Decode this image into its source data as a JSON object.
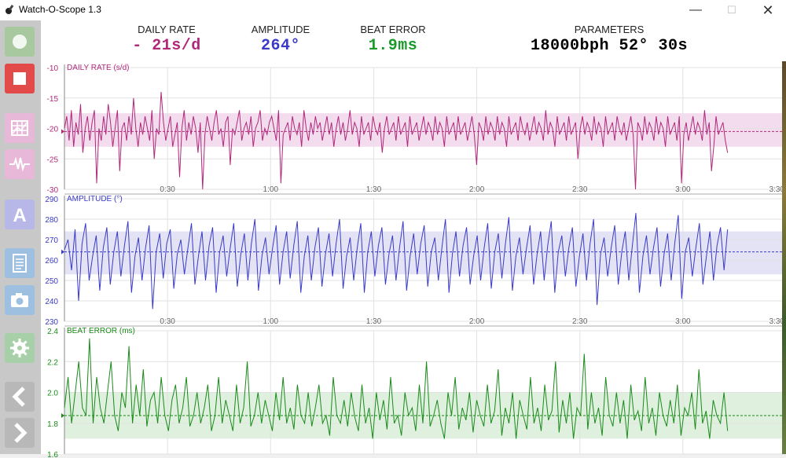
{
  "window": {
    "title": "Watch-O-Scope 1.3",
    "minimize": "—",
    "maximize": "☐",
    "close": "✕"
  },
  "toolbar": [
    {
      "name": "record-button",
      "icon": "record-icon",
      "color": "#a8c8a0"
    },
    {
      "name": "stop-button",
      "icon": "stop-icon",
      "color": "#e34a4a"
    },
    {
      "name": "graph-view-button",
      "icon": "grid-chart-icon",
      "color": "#e8b8d8"
    },
    {
      "name": "waveform-button",
      "icon": "waveform-icon",
      "color": "#e8b8d8"
    },
    {
      "name": "amplitude-button",
      "icon": "letter-a-icon",
      "color": "#b8b8e8"
    },
    {
      "name": "report-button",
      "icon": "document-icon",
      "color": "#9ec0e0"
    },
    {
      "name": "screenshot-button",
      "icon": "camera-icon",
      "color": "#9ec0e0"
    },
    {
      "name": "settings-button",
      "icon": "gear-icon",
      "color": "#a8d0a8"
    },
    {
      "name": "previous-button",
      "icon": "chevron-left-icon",
      "color": "#b8b8b8"
    },
    {
      "name": "next-button",
      "icon": "chevron-right-icon",
      "color": "#b8b8b8"
    }
  ],
  "metrics": {
    "daily_rate": {
      "label": "DAILY RATE",
      "value": "- 21s/d",
      "color": "#b0287a"
    },
    "amplitude": {
      "label": "AMPLITUDE",
      "value": "264°",
      "color": "#3a3ac8"
    },
    "beat_error": {
      "label": "BEAT ERROR",
      "value": "1.9ms",
      "color": "#1a9a2a"
    },
    "parameters": {
      "label": "PARAMETERS",
      "value": "18000bph 52° 30s",
      "color": "#000000"
    }
  },
  "chart_data": [
    {
      "type": "line",
      "title": "DAILY RATE (s/d)",
      "color": "#b0287a",
      "band_color": "#f3dcee",
      "ylim": [
        -30,
        -10
      ],
      "y_ticks": [
        "-10",
        "-15",
        "-20",
        "-25",
        "-30"
      ],
      "x_ticks": [
        "0:30",
        "1:00",
        "1:30",
        "2:00",
        "2:30",
        "3:00",
        "3:30"
      ],
      "xlim_seconds": [
        0,
        210
      ],
      "band": [
        -23,
        -17.5
      ],
      "mean": -20.5,
      "series": [
        {
          "x_end_seconds": 193,
          "values": [
            -20,
            -18,
            -22,
            -17,
            -23,
            -19,
            -21,
            -16,
            -24,
            -20,
            -18,
            -22,
            -19,
            -17,
            -29,
            -20,
            -22,
            -18,
            -21,
            -16,
            -19,
            -23,
            -20,
            -17,
            -27,
            -20,
            -19,
            -22,
            -18,
            -21,
            -15,
            -20,
            -23,
            -19,
            -21,
            -18,
            -20,
            -22,
            -17,
            -25,
            -20,
            -21,
            -14,
            -19,
            -22,
            -20,
            -18,
            -23,
            -21,
            -19,
            -28,
            -20,
            -17,
            -22,
            -19,
            -21,
            -18,
            -20,
            -24,
            -19,
            -30,
            -21,
            -18,
            -20,
            -22,
            -19,
            -17,
            -21,
            -20,
            -23,
            -19,
            -18,
            -26,
            -20,
            -21,
            -19,
            -17,
            -22,
            -20,
            -19,
            -21,
            -18,
            -23,
            -20,
            -19,
            -17,
            -22,
            -20,
            -21,
            -19,
            -18,
            -20,
            -22,
            -17,
            -29,
            -21,
            -20,
            -19,
            -22,
            -18,
            -20,
            -21,
            -19,
            -23,
            -17,
            -20,
            -22,
            -19,
            -21,
            -18,
            -20,
            -19,
            -22,
            -20,
            -18,
            -21,
            -19,
            -23,
            -20,
            -18,
            -21,
            -19,
            -22,
            -20,
            -17,
            -21,
            -19,
            -20,
            -23,
            -18,
            -21,
            -20,
            -19,
            -22,
            -18,
            -20,
            -21,
            -19,
            -24,
            -20,
            -18,
            -21,
            -20,
            -19,
            -22,
            -18,
            -21,
            -20,
            -19,
            -23,
            -18,
            -21,
            -20,
            -19,
            -22,
            -20,
            -18,
            -21,
            -19,
            -20,
            -22,
            -18,
            -21,
            -19,
            -20,
            -23,
            -18,
            -21,
            -20,
            -19,
            -22,
            -18,
            -21,
            -20,
            -19,
            -22,
            -20,
            -18,
            -21,
            -26,
            -19,
            -20,
            -22,
            -18,
            -21,
            -19,
            -20,
            -22,
            -18,
            -21,
            -19,
            -20,
            -23,
            -18,
            -21,
            -20,
            -19,
            -22,
            -18,
            -20,
            -21,
            -19,
            -22,
            -20,
            -18,
            -21,
            -19,
            -20,
            -22,
            -17,
            -21,
            -19,
            -20,
            -23,
            -18,
            -21,
            -20,
            -19,
            -22,
            -18,
            -21,
            -20,
            -19,
            -25,
            -20,
            -18,
            -21,
            -19,
            -20,
            -22,
            -18,
            -21,
            -19,
            -20,
            -23,
            -18,
            -21,
            -20,
            -19,
            -22,
            -18,
            -20,
            -21,
            -19,
            -22,
            -20,
            -18,
            -21,
            -30,
            -19,
            -20,
            -22,
            -18,
            -21,
            -19,
            -20,
            -22,
            -18,
            -21,
            -19,
            -20,
            -23,
            -18,
            -21,
            -20,
            -19,
            -22,
            -18,
            -29,
            -21,
            -19,
            -22,
            -20,
            -18,
            -21,
            -19,
            -20,
            -22,
            -17,
            -21,
            -19,
            -27,
            -23,
            -18,
            -21,
            -20,
            -19,
            -22,
            -24
          ]
        }
      ]
    },
    {
      "type": "line",
      "title": "AMPLITUDE (°)",
      "color": "#3a3ac8",
      "band_color": "#e3e3f5",
      "ylim": [
        230,
        290
      ],
      "y_ticks": [
        "290",
        "280",
        "270",
        "260",
        "250",
        "240",
        "230"
      ],
      "x_ticks": [
        "0:30",
        "1:00",
        "1:30",
        "2:00",
        "2:30",
        "3:00",
        "3:30"
      ],
      "xlim_seconds": [
        0,
        210
      ],
      "band": [
        253,
        274
      ],
      "mean": 264,
      "series": [
        {
          "x_end_seconds": 193,
          "values": [
            265,
            270,
            255,
            275,
            240,
            268,
            278,
            250,
            262,
            272,
            245,
            266,
            276,
            248,
            264,
            274,
            252,
            267,
            279,
            244,
            262,
            271,
            250,
            266,
            277,
            236,
            264,
            273,
            251,
            268,
            275,
            246,
            263,
            270,
            253,
            266,
            278,
            248,
            262,
            274,
            250,
            267,
            276,
            244,
            264,
            272,
            252,
            266,
            278,
            247,
            263,
            273,
            250,
            268,
            280,
            245,
            262,
            271,
            253,
            266,
            277,
            248,
            264,
            274,
            251,
            267,
            279,
            244,
            262,
            272,
            250,
            266,
            276,
            247,
            263,
            273,
            252,
            268,
            280,
            246,
            262,
            271,
            250,
            266,
            278,
            244,
            264,
            274,
            252,
            267,
            276,
            248,
            263,
            272,
            250,
            266,
            279,
            245,
            262,
            273,
            253,
            268,
            277,
            247,
            264,
            271,
            250,
            266,
            280,
            244,
            263,
            274,
            252,
            267,
            276,
            248,
            262,
            272,
            250,
            266,
            278,
            246,
            264,
            273,
            251,
            268,
            281,
            245,
            262,
            271,
            253,
            266,
            277,
            248,
            263,
            274,
            250,
            267,
            279,
            244,
            264,
            272,
            252,
            266,
            276,
            247,
            262,
            273,
            250,
            268,
            280,
            238,
            263,
            271,
            252,
            266,
            277,
            248,
            264,
            274,
            250,
            267,
            283,
            244,
            262,
            272,
            253,
            266,
            276,
            247,
            263,
            273,
            250,
            268,
            282,
            241,
            264,
            271,
            252,
            266,
            278,
            248,
            262,
            274,
            250,
            267,
            276,
            255,
            275
          ]
        }
      ]
    },
    {
      "type": "line",
      "title": "BEAT ERROR (ms)",
      "color": "#1a8a1a",
      "band_color": "#dff0df",
      "ylim": [
        1.6,
        2.4
      ],
      "y_ticks": [
        "2.4",
        "2.2",
        "2.0",
        "1.8",
        "1.6"
      ],
      "x_ticks": [],
      "xlim_seconds": [
        0,
        210
      ],
      "band": [
        1.7,
        2.0
      ],
      "mean": 1.85,
      "series": [
        {
          "x_end_seconds": 193,
          "values": [
            1.9,
            2.1,
            1.8,
            2.0,
            2.2,
            1.9,
            1.85,
            2.35,
            1.8,
            2.1,
            1.9,
            1.8,
            2.0,
            2.2,
            1.85,
            1.75,
            2.0,
            1.9,
            2.3,
            1.8,
            2.05,
            1.85,
            2.15,
            1.78,
            1.95,
            2.0,
            1.8,
            2.1,
            1.85,
            1.75,
            1.95,
            2.05,
            1.8,
            1.9,
            2.1,
            1.78,
            1.85,
            2.0,
            1.8,
            1.9,
            2.05,
            1.75,
            1.85,
            2.1,
            1.8,
            1.95,
            1.85,
            1.75,
            2.05,
            1.8,
            1.9,
            2.2,
            1.78,
            1.85,
            2.0,
            1.8,
            1.95,
            1.85,
            1.75,
            2.0,
            1.82,
            2.1,
            1.8,
            1.9,
            1.76,
            2.05,
            1.85,
            1.8,
            2.0,
            1.78,
            1.9,
            2.05,
            1.8,
            1.85,
            1.72,
            2.1,
            1.85,
            1.8,
            1.95,
            1.78,
            2.0,
            1.84,
            1.75,
            2.05,
            1.8,
            1.9,
            1.7,
            2.0,
            1.82,
            1.95,
            1.76,
            2.1,
            1.8,
            1.85,
            1.72,
            2.0,
            1.85,
            1.9,
            1.75,
            2.05,
            1.8,
            2.2,
            1.78,
            1.85,
            1.95,
            1.8,
            1.7,
            2.0,
            1.85,
            2.1,
            1.76,
            1.9,
            1.82,
            2.0,
            1.74,
            1.95,
            1.85,
            1.78,
            2.05,
            1.8,
            1.88,
            2.15,
            1.72,
            1.9,
            1.8,
            2.0,
            1.7,
            1.95,
            1.85,
            1.76,
            2.1,
            1.8,
            1.9,
            1.75,
            2.05,
            1.82,
            1.88,
            2.2,
            1.74,
            1.95,
            1.8,
            2.0,
            1.7,
            1.9,
            1.85,
            2.25,
            1.76,
            2.0,
            1.8,
            1.9,
            1.72,
            2.1,
            1.85,
            1.78,
            2.0,
            1.8,
            1.95,
            1.7,
            2.05,
            1.82,
            1.88,
            1.75,
            2.1,
            1.8,
            1.9,
            1.72,
            2.0,
            1.85,
            1.78,
            1.95,
            1.8,
            2.05,
            1.72,
            1.9,
            1.85,
            2.0,
            1.76,
            2.15,
            1.8,
            1.88,
            1.7,
            1.95,
            1.85,
            1.8,
            2.0,
            1.75
          ]
        }
      ]
    }
  ]
}
